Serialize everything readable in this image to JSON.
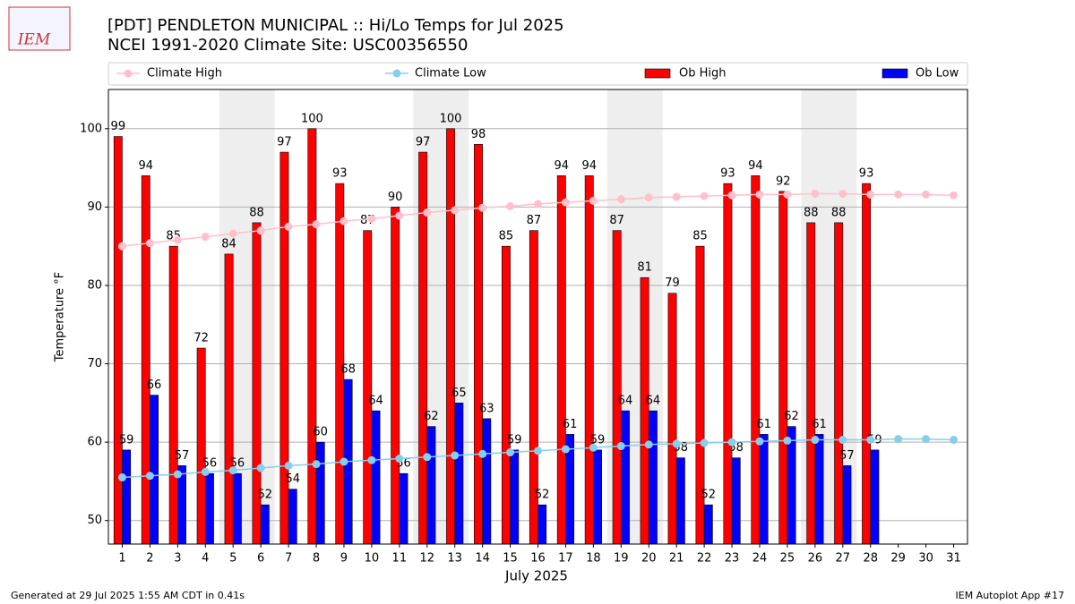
{
  "logo": "IEM",
  "footer": {
    "left": "Generated at 29 Jul 2025 1:55 AM CDT in 0.41s",
    "right": "IEM Autoplot App #17"
  },
  "chart_data": {
    "type": "bar",
    "title": "[PDT] PENDLETON MUNICIPAL :: Hi/Lo Temps for Jul 2025",
    "subtitle": "NCEI 1991-2020 Climate Site: USC00356550",
    "x_label": "July 2025",
    "y_label": "Temperature °F",
    "categories": [
      "1",
      "2",
      "3",
      "4",
      "5",
      "6",
      "7",
      "8",
      "9",
      "10",
      "11",
      "12",
      "13",
      "14",
      "15",
      "16",
      "17",
      "18",
      "19",
      "20",
      "21",
      "22",
      "23",
      "24",
      "25",
      "26",
      "27",
      "28",
      "29",
      "30",
      "31"
    ],
    "shaded_categories": [
      "5",
      "6",
      "12",
      "13",
      "19",
      "20",
      "26",
      "27"
    ],
    "shade_color": "#eeeeee",
    "ylim": [
      47,
      105
    ],
    "yticks": [
      50,
      60,
      70,
      80,
      90,
      100
    ],
    "grid": true,
    "legend": "top",
    "series": [
      {
        "name": "Climate High",
        "type": "line",
        "color": "#ffc0cb",
        "values": [
          85.0,
          85.4,
          85.8,
          86.2,
          86.6,
          87.0,
          87.5,
          87.8,
          88.2,
          88.5,
          88.9,
          89.3,
          89.6,
          89.9,
          90.1,
          90.4,
          90.6,
          90.8,
          91.0,
          91.2,
          91.3,
          91.4,
          91.5,
          91.6,
          91.6,
          91.7,
          91.7,
          91.6,
          91.6,
          91.6,
          91.5
        ]
      },
      {
        "name": "Climate Low",
        "type": "line",
        "color": "#87ceeb",
        "values": [
          55.5,
          55.7,
          55.9,
          56.2,
          56.4,
          56.7,
          57.0,
          57.2,
          57.5,
          57.7,
          57.9,
          58.1,
          58.3,
          58.5,
          58.7,
          58.9,
          59.1,
          59.3,
          59.5,
          59.7,
          59.8,
          59.9,
          60.0,
          60.1,
          60.2,
          60.3,
          60.3,
          60.3,
          60.4,
          60.4,
          60.3
        ]
      },
      {
        "name": "Ob High",
        "type": "bar",
        "color": "#ff0000",
        "values": [
          99,
          94,
          85,
          72,
          84,
          88,
          97,
          100,
          93,
          87,
          90,
          97,
          100,
          98,
          85,
          87,
          94,
          94,
          87,
          81,
          79,
          85,
          93,
          94,
          92,
          88,
          88,
          93,
          null,
          null,
          null
        ]
      },
      {
        "name": "Ob Low",
        "type": "bar",
        "color": "#0000ff",
        "values": [
          59,
          66,
          57,
          56,
          56,
          52,
          54,
          60,
          68,
          64,
          56,
          62,
          65,
          63,
          59,
          52,
          61,
          59,
          64,
          64,
          58,
          52,
          58,
          61,
          62,
          61,
          57,
          59,
          null,
          null,
          null
        ]
      }
    ]
  }
}
